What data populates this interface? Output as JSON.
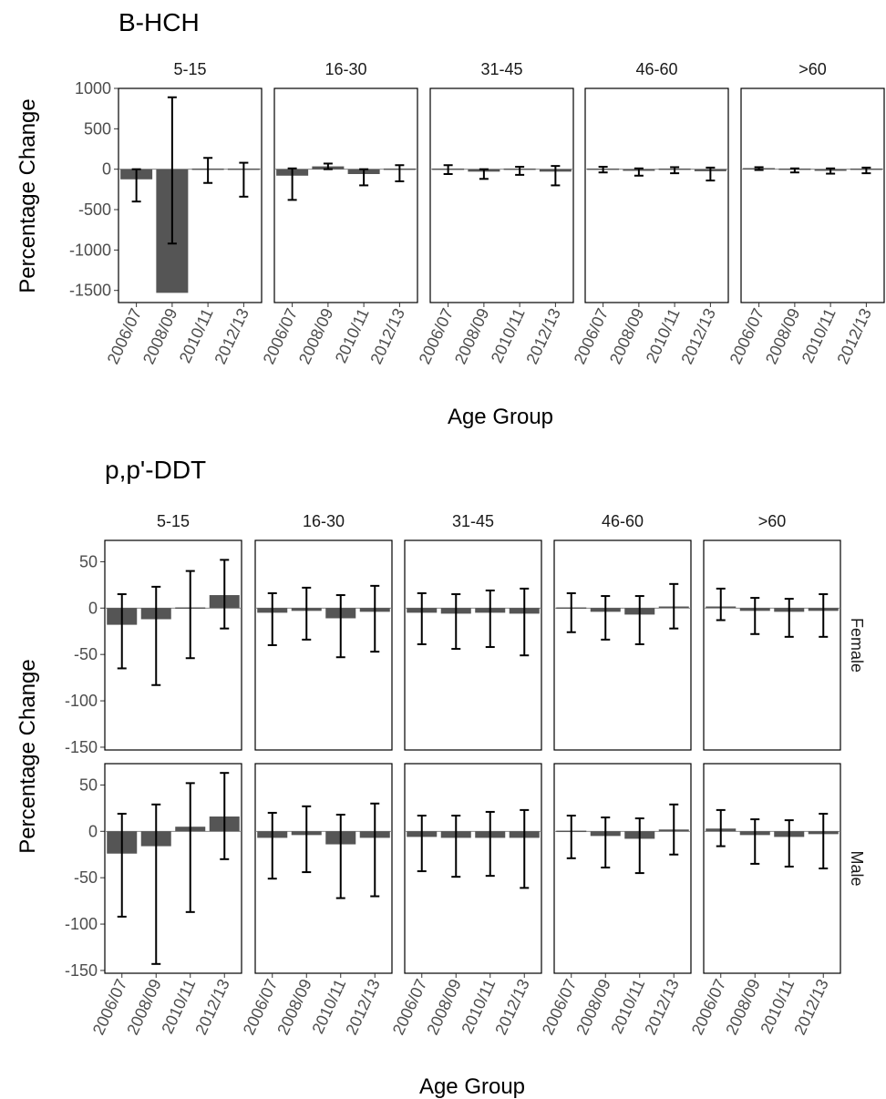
{
  "chart_data": [
    {
      "type": "bar",
      "title": "B-HCH",
      "xlabel": "Age Group",
      "ylabel": "Percentage Change",
      "facets": [
        "5-15",
        "16-30",
        "31-45",
        "46-60",
        ">60"
      ],
      "categories": [
        "2006/07",
        "2008/09",
        "2010/11",
        "2012/13"
      ],
      "ylim": [
        -1650,
        1000
      ],
      "yticks": [
        1000,
        500,
        0,
        -500,
        -1000,
        -1500
      ],
      "rows": [
        {
          "row_label": "",
          "panels": [
            {
              "facet": "5-15",
              "values": [
                -125,
                -1530,
                -5,
                -5
              ],
              "lower": [
                -400,
                -920,
                -170,
                -340
              ],
              "upper": [
                0,
                890,
                140,
                80
              ]
            },
            {
              "facet": "16-30",
              "values": [
                -80,
                35,
                -60,
                -15
              ],
              "lower": [
                -380,
                0,
                -200,
                -150
              ],
              "upper": [
                10,
                70,
                0,
                50
              ]
            },
            {
              "facet": "31-45",
              "values": [
                -5,
                -30,
                -15,
                -30
              ],
              "lower": [
                -60,
                -120,
                -70,
                -200
              ],
              "upper": [
                50,
                0,
                30,
                40
              ]
            },
            {
              "facet": "46-60",
              "values": [
                -5,
                -20,
                -10,
                -25
              ],
              "lower": [
                -40,
                -80,
                -50,
                -140
              ],
              "upper": [
                30,
                10,
                25,
                20
              ]
            },
            {
              "facet": ">60",
              "values": [
                5,
                -10,
                -20,
                -15
              ],
              "lower": [
                -10,
                -40,
                -55,
                -50
              ],
              "upper": [
                25,
                10,
                10,
                20
              ]
            }
          ]
        }
      ]
    },
    {
      "type": "bar",
      "title": "p,p'-DDT",
      "xlabel": "Age Group",
      "ylabel": "Percentage Change",
      "facets": [
        "5-15",
        "16-30",
        "31-45",
        "46-60",
        ">60"
      ],
      "categories": [
        "2006/07",
        "2008/09",
        "2010/11",
        "2012/13"
      ],
      "ylim": [
        -153,
        73
      ],
      "yticks": [
        50,
        0,
        -50,
        -100,
        -150
      ],
      "rows": [
        {
          "row_label": "Female",
          "panels": [
            {
              "facet": "5-15",
              "values": [
                -18,
                -12,
                -1,
                14
              ],
              "lower": [
                -65,
                -83,
                -54,
                -22
              ],
              "upper": [
                15,
                23,
                40,
                52
              ]
            },
            {
              "facet": "16-30",
              "values": [
                -5,
                -3,
                -11,
                -4
              ],
              "lower": [
                -40,
                -34,
                -53,
                -47
              ],
              "upper": [
                16,
                22,
                14,
                24
              ]
            },
            {
              "facet": "31-45",
              "values": [
                -5,
                -6,
                -5,
                -6
              ],
              "lower": [
                -39,
                -44,
                -42,
                -51
              ],
              "upper": [
                16,
                15,
                19,
                21
              ]
            },
            {
              "facet": "46-60",
              "values": [
                -1,
                -4,
                -7,
                1
              ],
              "lower": [
                -26,
                -34,
                -39,
                -22
              ],
              "upper": [
                16,
                13,
                13,
                26
              ]
            },
            {
              "facet": ">60",
              "values": [
                1,
                -3,
                -4,
                -3
              ],
              "lower": [
                -13,
                -28,
                -31,
                -31
              ],
              "upper": [
                21,
                11,
                10,
                15
              ]
            }
          ]
        },
        {
          "row_label": "Male",
          "panels": [
            {
              "facet": "5-15",
              "values": [
                -24,
                -16,
                5,
                16
              ],
              "lower": [
                -92,
                -143,
                -87,
                -30
              ],
              "upper": [
                19,
                29,
                52,
                63
              ]
            },
            {
              "facet": "16-30",
              "values": [
                -7,
                -4,
                -14,
                -7
              ],
              "lower": [
                -51,
                -44,
                -72,
                -70
              ],
              "upper": [
                20,
                27,
                18,
                30
              ]
            },
            {
              "facet": "31-45",
              "values": [
                -6,
                -7,
                -7,
                -7
              ],
              "lower": [
                -43,
                -49,
                -48,
                -61
              ],
              "upper": [
                17,
                17,
                21,
                23
              ]
            },
            {
              "facet": "46-60",
              "values": [
                -1,
                -5,
                -8,
                2
              ],
              "lower": [
                -29,
                -39,
                -45,
                -25
              ],
              "upper": [
                17,
                15,
                14,
                29
              ]
            },
            {
              "facet": ">60",
              "values": [
                3,
                -4,
                -6,
                -3
              ],
              "lower": [
                -16,
                -35,
                -38,
                -40
              ],
              "upper": [
                23,
                13,
                12,
                19
              ]
            }
          ]
        }
      ]
    }
  ]
}
